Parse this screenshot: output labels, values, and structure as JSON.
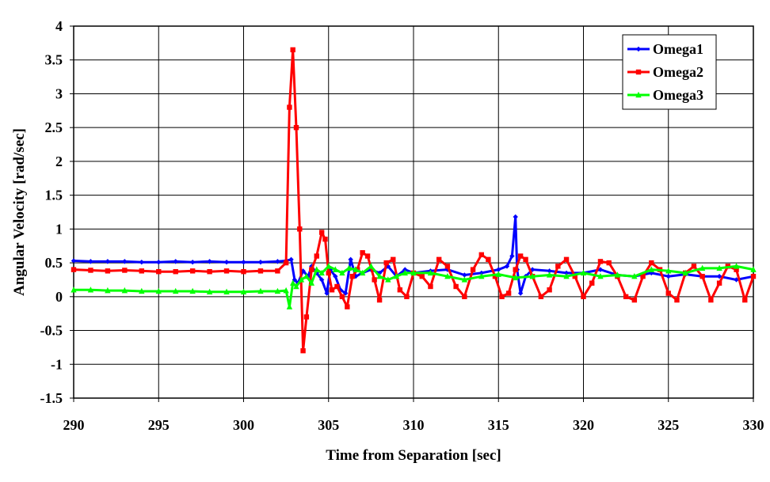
{
  "chart_data": {
    "type": "line",
    "title": "",
    "xlabel": "Time from Separation [sec]",
    "ylabel": "Angular Velocity [rad/sec]",
    "xlim": [
      290,
      330
    ],
    "ylim": [
      -1.5,
      4
    ],
    "x_ticks": [
      290,
      295,
      300,
      305,
      310,
      315,
      320,
      325,
      330
    ],
    "y_ticks": [
      4,
      3.5,
      3,
      2.5,
      2,
      1.5,
      1,
      0.5,
      0,
      -0.5,
      -1,
      -1.5
    ],
    "x_tick_labels": [
      "290",
      "295",
      "300",
      "305",
      "310",
      "315",
      "320",
      "325",
      "330"
    ],
    "y_tick_labels": [
      "4",
      "3.5",
      "3",
      "2.5",
      "2",
      "1.5",
      "1",
      "0.5",
      "0",
      "-0.5",
      "-1",
      "-1.5"
    ],
    "grid": true,
    "legend_position": "top-right",
    "series": [
      {
        "name": "Omega1",
        "color": "#0000FF",
        "marker": "diamond",
        "x": [
          290,
          291,
          292,
          293,
          294,
          295,
          296,
          297,
          298,
          299,
          300,
          301,
          302,
          302.5,
          302.8,
          303.0,
          303.2,
          303.5,
          303.8,
          304.0,
          304.3,
          304.6,
          304.9,
          305.1,
          305.4,
          305.7,
          306.0,
          306.3,
          306.6,
          307.0,
          307.5,
          308.0,
          308.5,
          309.0,
          309.5,
          310.0,
          311.0,
          312.0,
          313.0,
          314.0,
          315.0,
          315.5,
          315.8,
          316.0,
          316.1,
          316.3,
          316.6,
          317.0,
          318.0,
          319.0,
          320.0,
          321.0,
          322.0,
          323.0,
          324.0,
          325.0,
          326.0,
          327.0,
          328.0,
          329.0,
          330.0
        ],
        "y": [
          0.53,
          0.52,
          0.52,
          0.52,
          0.51,
          0.51,
          0.52,
          0.51,
          0.52,
          0.51,
          0.51,
          0.51,
          0.52,
          0.53,
          0.55,
          0.25,
          0.2,
          0.38,
          0.3,
          0.45,
          0.35,
          0.25,
          0.05,
          0.4,
          0.3,
          0.1,
          0.05,
          0.55,
          0.3,
          0.35,
          0.4,
          0.35,
          0.45,
          0.3,
          0.4,
          0.35,
          0.38,
          0.4,
          0.32,
          0.35,
          0.4,
          0.45,
          0.6,
          1.18,
          0.4,
          0.05,
          0.3,
          0.4,
          0.38,
          0.35,
          0.35,
          0.4,
          0.32,
          0.3,
          0.35,
          0.3,
          0.33,
          0.3,
          0.3,
          0.25,
          0.3
        ]
      },
      {
        "name": "Omega2",
        "color": "#FF0000",
        "marker": "square",
        "x": [
          290,
          291,
          292,
          293,
          294,
          295,
          296,
          297,
          298,
          299,
          300,
          301,
          302,
          302.5,
          302.7,
          302.9,
          303.1,
          303.3,
          303.5,
          303.7,
          304.0,
          304.3,
          304.6,
          304.8,
          305.0,
          305.2,
          305.5,
          305.8,
          306.1,
          306.4,
          306.7,
          307.0,
          307.3,
          307.7,
          308.0,
          308.4,
          308.8,
          309.2,
          309.6,
          310.0,
          310.5,
          311.0,
          311.5,
          312.0,
          312.5,
          313.0,
          313.5,
          314.0,
          314.4,
          314.8,
          315.2,
          315.6,
          316.0,
          316.3,
          316.6,
          317.0,
          317.5,
          318.0,
          318.5,
          319.0,
          319.5,
          320.0,
          320.5,
          321.0,
          321.5,
          322.0,
          322.5,
          323.0,
          323.5,
          324.0,
          324.5,
          325.0,
          325.5,
          326.0,
          326.5,
          327.0,
          327.5,
          328.0,
          328.5,
          329.0,
          329.5,
          330.0
        ],
        "y": [
          0.4,
          0.39,
          0.38,
          0.39,
          0.38,
          0.37,
          0.37,
          0.38,
          0.37,
          0.38,
          0.37,
          0.38,
          0.38,
          0.5,
          2.8,
          3.65,
          2.5,
          1.0,
          -0.8,
          -0.3,
          0.4,
          0.6,
          0.95,
          0.85,
          0.35,
          0.1,
          0.15,
          0.0,
          -0.15,
          0.3,
          0.4,
          0.65,
          0.6,
          0.25,
          -0.05,
          0.5,
          0.55,
          0.1,
          0.0,
          0.35,
          0.3,
          0.15,
          0.55,
          0.45,
          0.15,
          0.0,
          0.4,
          0.62,
          0.55,
          0.3,
          0.0,
          0.05,
          0.4,
          0.6,
          0.55,
          0.3,
          0.0,
          0.1,
          0.45,
          0.55,
          0.3,
          0.0,
          0.2,
          0.52,
          0.5,
          0.3,
          0.0,
          -0.05,
          0.3,
          0.5,
          0.4,
          0.05,
          -0.05,
          0.35,
          0.45,
          0.3,
          -0.05,
          0.2,
          0.45,
          0.4,
          -0.05,
          0.3
        ]
      },
      {
        "name": "Omega3",
        "color": "#00FF00",
        "marker": "triangle",
        "x": [
          290,
          291,
          292,
          293,
          294,
          295,
          296,
          297,
          298,
          299,
          300,
          301,
          302,
          302.5,
          302.7,
          302.9,
          303.1,
          303.4,
          303.7,
          304.0,
          304.3,
          304.6,
          305.0,
          305.4,
          305.8,
          306.2,
          306.6,
          307.0,
          307.5,
          308.0,
          308.5,
          309.0,
          309.5,
          310.0,
          311.0,
          312.0,
          313.0,
          314.0,
          315.0,
          316.0,
          317.0,
          318.0,
          319.0,
          320.0,
          321.0,
          322.0,
          323.0,
          324.0,
          325.0,
          326.0,
          327.0,
          328.0,
          329.0,
          330.0
        ],
        "y": [
          0.1,
          0.1,
          0.09,
          0.09,
          0.08,
          0.08,
          0.08,
          0.08,
          0.07,
          0.07,
          0.07,
          0.08,
          0.08,
          0.09,
          -0.15,
          0.2,
          0.15,
          0.25,
          0.3,
          0.2,
          0.4,
          0.35,
          0.45,
          0.4,
          0.35,
          0.42,
          0.4,
          0.35,
          0.45,
          0.3,
          0.25,
          0.3,
          0.35,
          0.35,
          0.35,
          0.3,
          0.25,
          0.3,
          0.33,
          0.28,
          0.3,
          0.32,
          0.3,
          0.35,
          0.3,
          0.32,
          0.3,
          0.4,
          0.38,
          0.35,
          0.42,
          0.42,
          0.45,
          0.4
        ]
      }
    ]
  }
}
